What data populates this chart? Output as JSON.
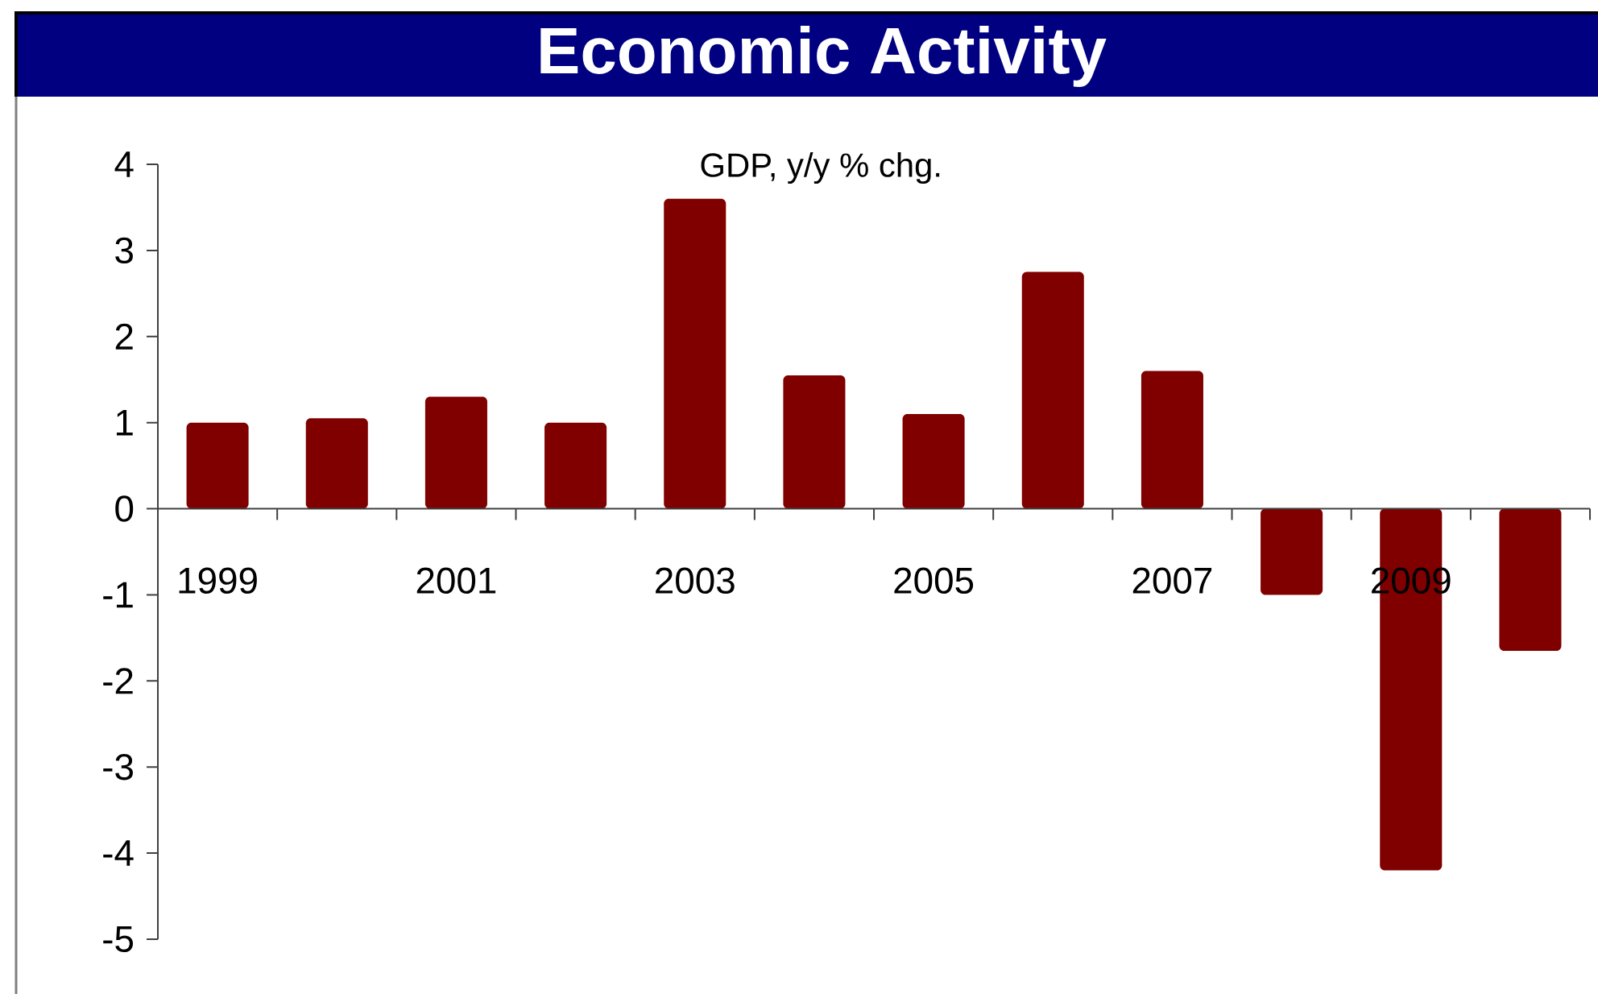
{
  "chart_data": {
    "type": "bar",
    "title": "Economic Activity",
    "subtitle": "GDP, y/y % chg.",
    "categories": [
      "1999",
      null,
      "2001",
      null,
      "2003",
      null,
      "2005",
      null,
      "2007",
      null,
      "2009",
      null
    ],
    "values": [
      1.0,
      1.05,
      1.3,
      1.0,
      3.6,
      1.55,
      1.1,
      2.75,
      1.6,
      -1.0,
      -4.2,
      -1.65
    ],
    "color": "#800000",
    "ylim": [
      -5,
      4
    ],
    "yticks": [
      -5,
      -4,
      -3,
      -2,
      -1,
      0,
      1,
      2,
      3,
      4
    ],
    "grid": false
  }
}
